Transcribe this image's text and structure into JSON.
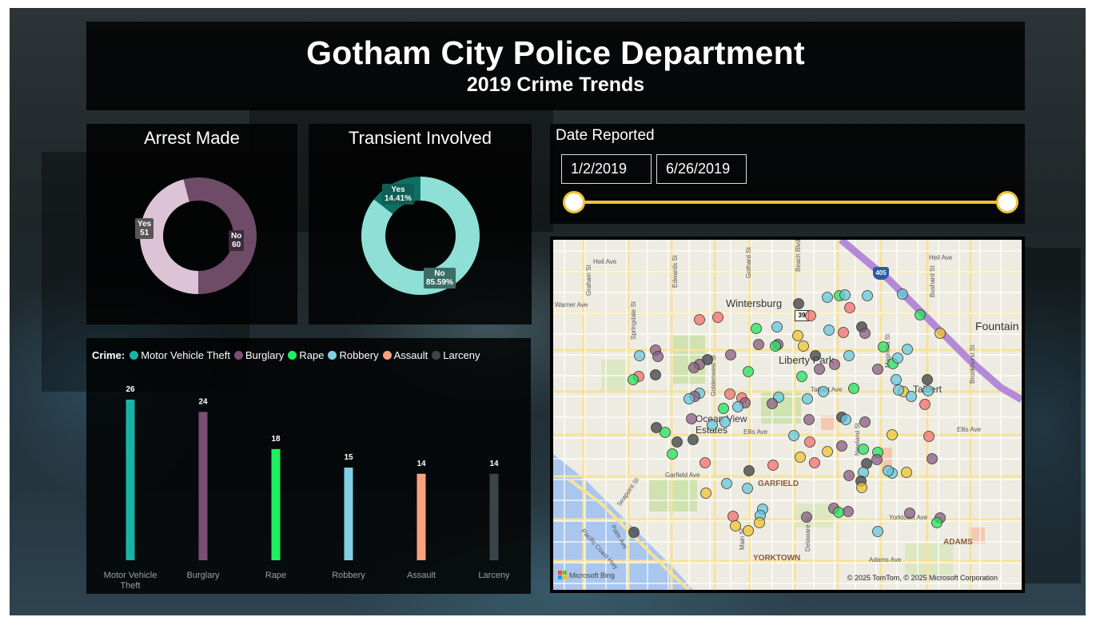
{
  "header": {
    "title": "Gotham City Police Department",
    "subtitle": "2019 Crime Trends"
  },
  "arrest": {
    "title": "Arrest Made",
    "slices": [
      {
        "name": "Yes",
        "value": 51,
        "label": "51",
        "color": "#dcc3d6"
      },
      {
        "name": "No",
        "value": 60,
        "label": "60",
        "color": "#6e4c68"
      }
    ]
  },
  "transient": {
    "title": "Transient Involved",
    "slices": [
      {
        "name": "Yes",
        "value": 14.41,
        "label": "14.41%",
        "color": "#0f6f64"
      },
      {
        "name": "No",
        "value": 85.59,
        "label": "85.59%",
        "color": "#8ee0d6"
      }
    ]
  },
  "date_filter": {
    "label": "Date Reported",
    "start": "1/2/2019",
    "end": "6/26/2019",
    "accent": "#f0c237"
  },
  "chart_data": {
    "type": "bar",
    "legend_title": "Crime:",
    "categories": [
      "Motor Vehicle Theft",
      "Burglary",
      "Rape",
      "Robbery",
      "Assault",
      "Larceny"
    ],
    "values": [
      26,
      24,
      18,
      15,
      14,
      14
    ],
    "colors": [
      "#17b4a6",
      "#7b4e73",
      "#1df162",
      "#7fd0e6",
      "#f7a27e",
      "#3c4449"
    ],
    "ylim": [
      0,
      26
    ],
    "legend_position": "top-left"
  },
  "map": {
    "place_labels": [
      "Wintersburg",
      "Liberty Park",
      "Ocean View Estates",
      "Talbert",
      "Fountain Valley",
      "GARFIELD",
      "YORKTOWN",
      "ADAMS"
    ],
    "street_labels": [
      "Heil Ave",
      "Warner Ave",
      "Talbert Ave",
      "Ellis Ave",
      "Garfield Ave",
      "Yorktown Ave",
      "Adams Ave",
      "Pacific Coast Hwy",
      "Seapoint St",
      "Beach Blvd",
      "Magnolia St",
      "Newland St",
      "Delaware St",
      "Main St",
      "Goldenwest St",
      "Edwards St",
      "Graham St",
      "Gothard St",
      "Springdale St",
      "Brookhurst St",
      "Bushard St",
      "Palm Ave"
    ],
    "shields": [
      "405",
      "39"
    ],
    "attribution": "© 2025 TomTom, © 2025 Microsoft Corporation",
    "logo": "Microsoft Bing",
    "point_colors": {
      "Motor Vehicle Theft": "#1fb3a6",
      "Burglary": "#8a5c82",
      "Rape": "#22e35e",
      "Robbery": "#66c7de",
      "Assault": "#f3706d",
      "Larceny": "#3a3f43",
      "Other": "#eec531"
    }
  }
}
